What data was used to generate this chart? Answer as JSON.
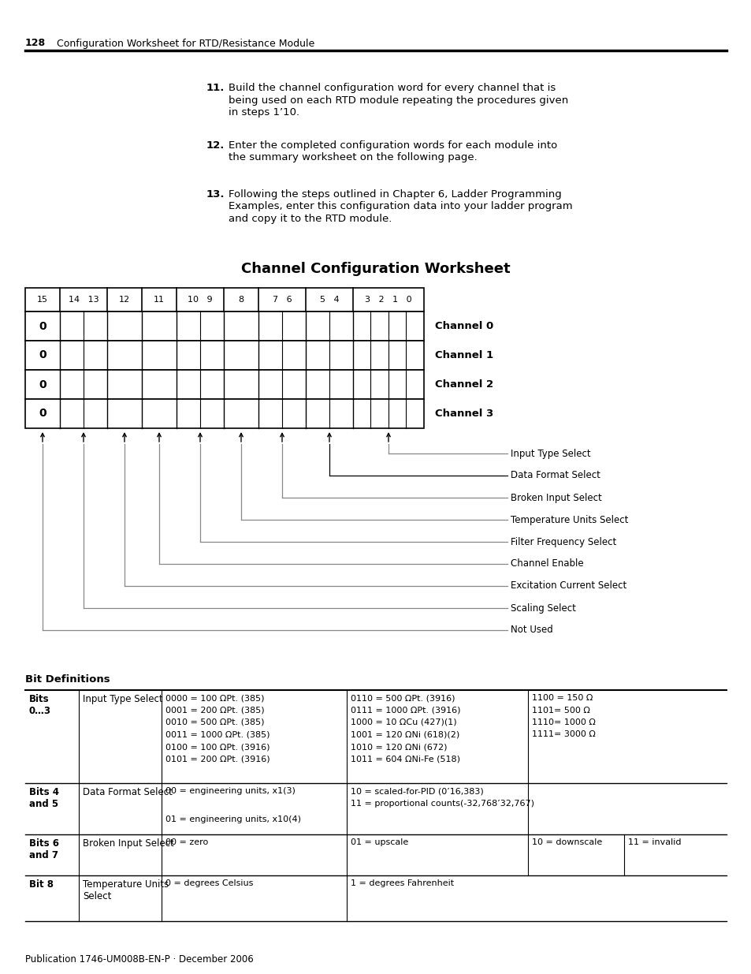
{
  "page_number": "128",
  "header_text": "Configuration Worksheet for RTD/Resistance Module",
  "footer_text": "Publication 1746-UM008B-EN-P · December 2006",
  "steps": [
    {
      "num": "11.",
      "text1": "Build the channel configuration word for every channel that is",
      "text2": "being used on each RTD module repeating the procedures given",
      "text3": "in steps 1’10."
    },
    {
      "num": "12.",
      "text1": "Enter the completed configuration words for each module into",
      "text2": "the summary worksheet on the following page.",
      "text3": ""
    },
    {
      "num": "13.",
      "text1": "Following the steps outlined in Chapter 6, Ladder Programming",
      "text2": "Examples, enter this configuration data into your ladder program",
      "text3": "and copy it to the RTD module."
    }
  ],
  "worksheet_title": "Channel Configuration Worksheet",
  "channels": [
    "Channel 0",
    "Channel 1",
    "Channel 2",
    "Channel 3"
  ],
  "arrow_labels": [
    "Input Type Select",
    "Data Format Select",
    "Broken Input Select",
    "Temperature Units Select",
    "Filter Frequency Select",
    "Channel Enable",
    "Excitation Current Select",
    "Scaling Select",
    "Not Used"
  ],
  "bit_def_title": "Bit Definitions",
  "table_rows": [
    {
      "col0": "Bits\n0…3",
      "col1": "Input Type Select",
      "col2": "0000 = 100 ΩPt. (385)\n0001 = 200 ΩPt. (385)\n0010 = 500 ΩPt. (385)\n0011 = 1000 ΩPt. (385)\n0100 = 100 ΩPt. (3916)\n0101 = 200 ΩPt. (3916)",
      "col3": "0110 = 500 ΩPt. (3916)\n0111 = 1000 ΩPt. (3916)\n1000 = 10 ΩCu (427)(1)\n1001 = 120 ΩNi (618)(2)\n1010 = 120 ΩNi (672)\n1011 = 604 ΩNi-Fe (518)",
      "col4": "1100 = 150 Ω\n1101= 500 Ω\n1110= 1000 Ω\n1111= 3000 Ω"
    },
    {
      "col0": "Bits 4\nand 5",
      "col1": "Data Format Select",
      "col2": "00 = engineering units, x1(3)\n\n01 = engineering units, x10(4)",
      "col3": "10 = scaled-for-PID (0’16,383)\n11 = proportional counts(-32,768’32,767)",
      "col4": ""
    },
    {
      "col0": "Bits 6\nand 7",
      "col1": "Broken Input Select",
      "col2": "00 = zero",
      "col3": "01 = upscale",
      "col4a": "10 = downscale",
      "col4b": "11 = invalid"
    },
    {
      "col0": "Bit 8",
      "col1": "Temperature Units\nSelect",
      "col2": "0 = degrees Celsius",
      "col3": "1 = degrees Fahrenheit",
      "col4": ""
    }
  ]
}
